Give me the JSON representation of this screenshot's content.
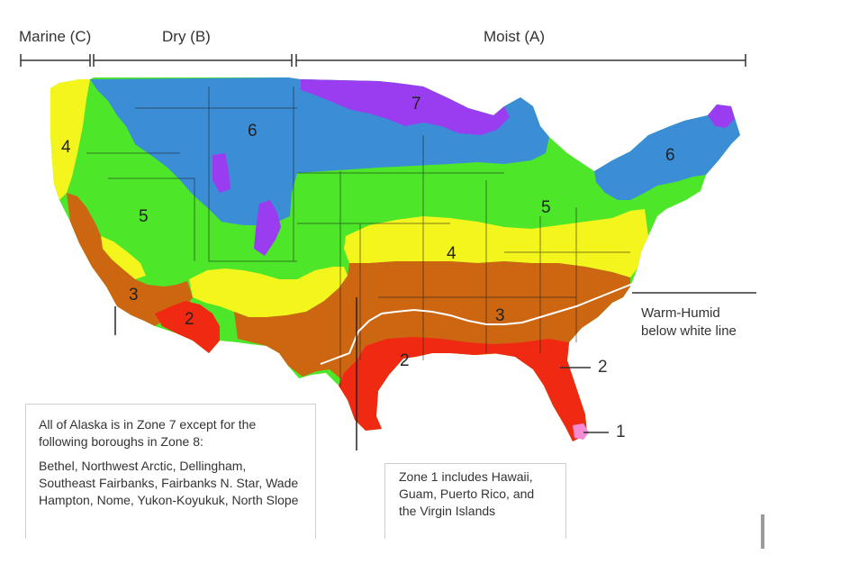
{
  "climate_regions": [
    {
      "label": "Marine (C)"
    },
    {
      "label": "Dry (B)"
    },
    {
      "label": "Moist (A)"
    }
  ],
  "zone_colors": {
    "1": "#f58bd3",
    "2": "#f02a12",
    "3": "#cc6611",
    "4": "#f5f51e",
    "5": "#4de629",
    "6": "#3b8ed6",
    "7": "#9a3df0"
  },
  "zone_labels": [
    "4",
    "6",
    "5",
    "3",
    "2",
    "7",
    "6",
    "5",
    "4",
    "3",
    "2"
  ],
  "callouts": {
    "zone2_label": "2",
    "zone1_label": "1"
  },
  "warm_humid": {
    "line1": "Warm-Humid",
    "line2": "below white line"
  },
  "alaska_note": {
    "intro": "All of Alaska is in Zone 7 except for the following boroughs in Zone 8:",
    "boroughs": "Bethel, Northwest Arctic, Dellingham, Southeast Fairbanks, Fairbanks N. Star, Wade Hampton, Nome, Yukon-Koyukuk, North Slope"
  },
  "zone1_note": {
    "text": "Zone 1 includes Hawaii, Guam, Puerto Rico, and the Virgin Islands"
  }
}
